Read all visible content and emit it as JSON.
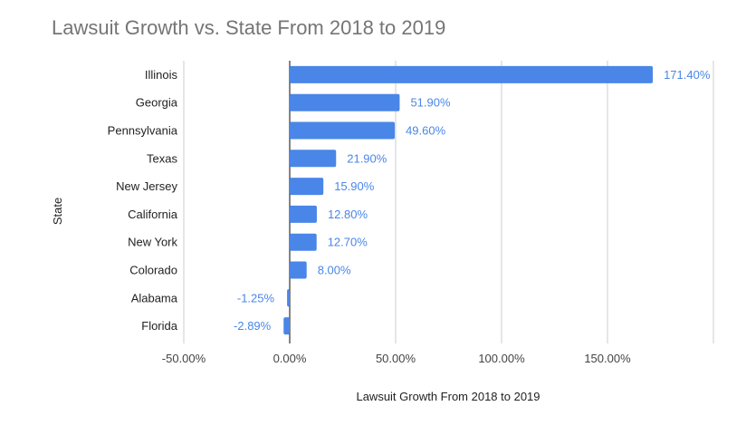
{
  "chart_data": {
    "type": "bar",
    "orientation": "horizontal",
    "title": "Lawsuit Growth vs. State From 2018 to 2019",
    "xlabel": "Lawsuit Growth From 2018 to 2019",
    "ylabel": "State",
    "categories": [
      "Illinois",
      "Georgia",
      "Pennsylvania",
      "Texas",
      "New Jersey",
      "California",
      "New York",
      "Colorado",
      "Alabama",
      "Florida"
    ],
    "values": [
      171.4,
      51.9,
      49.6,
      21.9,
      15.9,
      12.8,
      12.7,
      8.0,
      -1.25,
      -2.89
    ],
    "value_labels": [
      "171.40%",
      "51.90%",
      "49.60%",
      "21.90%",
      "15.90%",
      "12.80%",
      "12.70%",
      "8.00%",
      "-1.25%",
      "-2.89%"
    ],
    "x_ticks": [
      -50,
      0,
      50,
      100,
      150
    ],
    "x_tick_labels": [
      "-50.00%",
      "0.00%",
      "50.00%",
      "100.00%",
      "150.00%"
    ],
    "xlim": [
      -50,
      200
    ],
    "grid": true,
    "legend": "none",
    "bar_color": "#4a86e8",
    "label_color": "#4a86e8",
    "grid_color": "#cccccc",
    "zero_line_color": "#333333"
  }
}
